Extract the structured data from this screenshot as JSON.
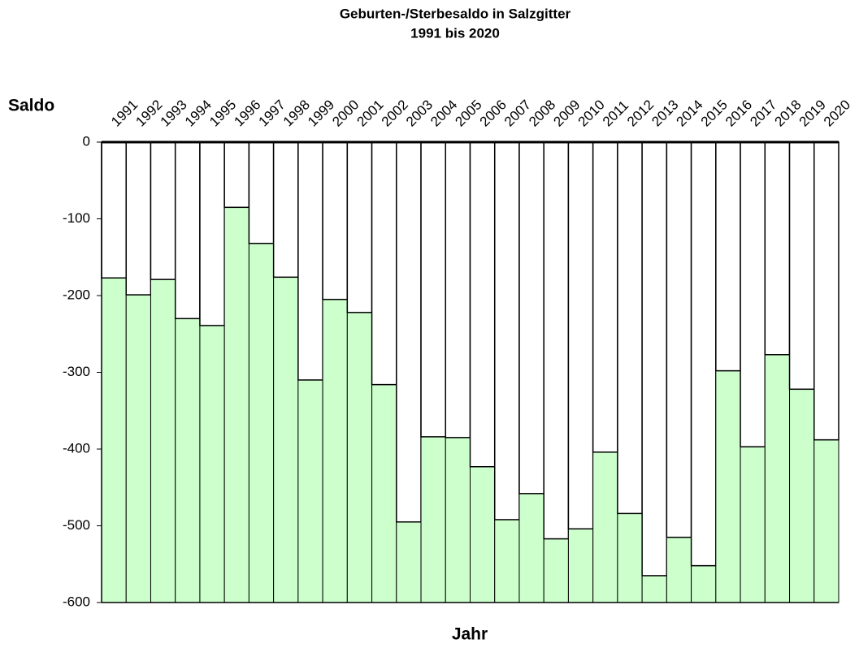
{
  "chart_data": {
    "type": "bar",
    "title": "Geburten-/Sterbesaldo in Salzgitter",
    "subtitle": "1991 bis 2020",
    "y_label": "Saldo",
    "x_label": "Jahr",
    "categories": [
      "1991",
      "1992",
      "1993",
      "1994",
      "1995",
      "1996",
      "1997",
      "1998",
      "1999",
      "2000",
      "2001",
      "2002",
      "2003",
      "2004",
      "2005",
      "2006",
      "2007",
      "2008",
      "2009",
      "2010",
      "2011",
      "2012",
      "2013",
      "2014",
      "2015",
      "2016",
      "2017",
      "2018",
      "2019",
      "2020"
    ],
    "values": [
      -177,
      -199,
      -179,
      -230,
      -239,
      -85,
      -132,
      -176,
      -310,
      -205,
      -222,
      -316,
      -495,
      -384,
      -385,
      -423,
      -492,
      -458,
      -517,
      -504,
      -404,
      -484,
      -565,
      -515,
      -552,
      -298,
      -397,
      -277,
      -322,
      -388
    ],
    "color": "#ffffff",
    "fill_below_color": "#ccffcc",
    "ylim": [
      -600,
      0
    ],
    "yticks": [
      0,
      -100,
      -200,
      -300,
      -400,
      -500,
      -600
    ]
  }
}
